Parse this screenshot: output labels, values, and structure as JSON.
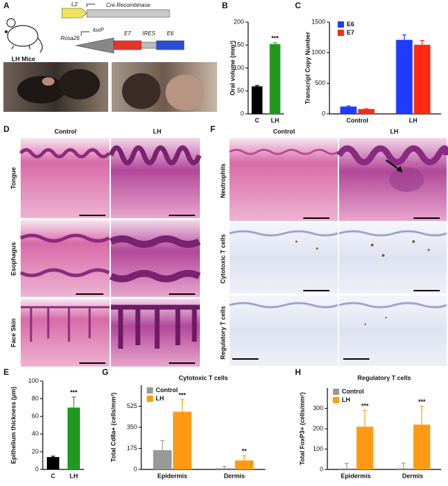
{
  "panels": {
    "A": {
      "label": "A",
      "mouse_label": "LH Mice",
      "construct": {
        "l2": "L2",
        "cre": "Cre Recombinase",
        "rosa26": "Rosa26",
        "loxp": "loxP",
        "e7": "E7",
        "ires": "IRES",
        "e6": "E6"
      }
    },
    "D": {
      "label": "D",
      "columns": [
        "Control",
        "LH"
      ],
      "rows": [
        "Tongue",
        "Esophagus",
        "Face Skin"
      ]
    },
    "F": {
      "label": "F",
      "columns": [
        "Control",
        "LH"
      ],
      "rows": [
        "Neutrophils",
        "Cytotoxic T cells",
        "Regulatory T cells"
      ]
    }
  },
  "chart_data": [
    {
      "type": "bar",
      "panel": "B",
      "y_label": "Oral volume (mm³)",
      "categories": [
        "C",
        "LH"
      ],
      "values": [
        60,
        152
      ],
      "errors": [
        2,
        3
      ],
      "colors": [
        "#000000",
        "#1f9a1f"
      ],
      "annotations": [
        null,
        "***"
      ],
      "ylim": [
        0,
        200
      ],
      "yticks": [
        0,
        50,
        100,
        150,
        200
      ]
    },
    {
      "type": "bar",
      "panel": "C",
      "y_label": "Transcript Copy Number",
      "categories": [
        "Control",
        "LH"
      ],
      "series": [
        {
          "name": "E6",
          "color": "#1f3bff",
          "values": [
            120,
            1210
          ],
          "errors": [
            10,
            80
          ]
        },
        {
          "name": "E7",
          "color": "#ff2a10",
          "values": [
            80,
            1130
          ],
          "errors": [
            8,
            70
          ]
        }
      ],
      "ylim": [
        0,
        1500
      ],
      "yticks": [
        0,
        500,
        1000,
        1500
      ]
    },
    {
      "type": "bar",
      "panel": "E",
      "y_label": "Epithelium thickness (μm)",
      "categories": [
        "C",
        "LH"
      ],
      "values": [
        14,
        70
      ],
      "errors": [
        1,
        12
      ],
      "colors": [
        "#000000",
        "#1f9a1f"
      ],
      "annotations": [
        null,
        "***"
      ],
      "ylim": [
        0,
        100
      ],
      "yticks": [
        0,
        20,
        40,
        60,
        80,
        100
      ]
    },
    {
      "type": "bar",
      "panel": "G",
      "title": "Cytotoxic T cells",
      "y_label": "Total Cd8a+ (cells/mm²)",
      "categories": [
        "Epidermis",
        "Dermis"
      ],
      "series": [
        {
          "name": "Control",
          "color": "#999999",
          "values": [
            160,
            10
          ],
          "errors": [
            80,
            15
          ],
          "annotations": [
            null,
            null
          ]
        },
        {
          "name": "LH",
          "color": "#ff9a12",
          "values": [
            480,
            75
          ],
          "errors": [
            100,
            40
          ],
          "annotations": [
            "***",
            "**"
          ]
        }
      ],
      "ylim": [
        0,
        700
      ],
      "yticks": [
        0,
        175,
        350,
        525
      ]
    },
    {
      "type": "bar",
      "panel": "H",
      "title": "Regulatory T cells",
      "y_label": "Total FoxP3+ (cells/mm²)",
      "categories": [
        "Epidermis",
        "Dermis"
      ],
      "series": [
        {
          "name": "Control",
          "color": "#999999",
          "values": [
            5,
            5
          ],
          "errors": [
            25,
            25
          ],
          "annotations": [
            null,
            null
          ]
        },
        {
          "name": "LH",
          "color": "#ff9a12",
          "values": [
            210,
            220
          ],
          "errors": [
            80,
            90
          ],
          "annotations": [
            "***",
            "***"
          ]
        }
      ],
      "ylim": [
        0,
        400
      ],
      "yticks": [
        0,
        100,
        200,
        300
      ]
    }
  ]
}
